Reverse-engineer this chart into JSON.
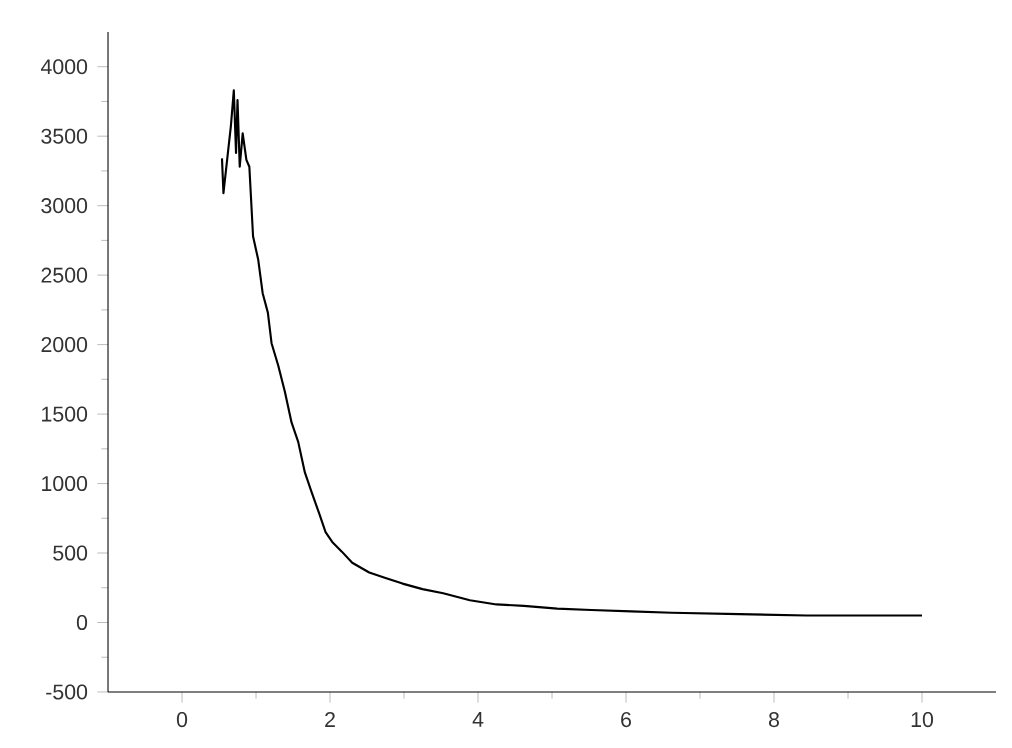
{
  "chart_data": {
    "type": "line",
    "color": "#000000",
    "x": [
      0.54,
      0.56,
      0.62,
      0.66,
      0.7,
      0.73,
      0.75,
      0.78,
      0.82,
      0.87,
      0.91,
      0.96,
      1.03,
      1.09,
      1.16,
      1.21,
      1.3,
      1.39,
      1.48,
      1.57,
      1.66,
      1.75,
      1.85,
      1.94,
      2.03,
      2.16,
      2.3,
      2.53,
      2.75,
      2.98,
      3.25,
      3.53,
      3.89,
      4.25,
      4.62,
      5.07,
      5.53,
      6.07,
      6.62,
      7.53,
      8.44,
      9.35,
      10.0
    ],
    "values": [
      3340,
      3090,
      3380,
      3570,
      3830,
      3380,
      3760,
      3280,
      3520,
      3330,
      3280,
      2780,
      2610,
      2370,
      2230,
      2010,
      1850,
      1660,
      1440,
      1300,
      1080,
      940,
      790,
      650,
      580,
      510,
      430,
      360,
      320,
      280,
      240,
      210,
      160,
      130,
      120,
      100,
      90,
      80,
      70,
      60,
      50,
      50,
      50
    ],
    "xlim": [
      -1,
      11
    ],
    "xticks": [
      0,
      2,
      4,
      6,
      8,
      10
    ],
    "ylim": [
      -500,
      4250
    ],
    "yticks": [
      -500,
      0,
      500,
      1000,
      1500,
      2000,
      2500,
      3000,
      3500,
      4000
    ],
    "marker": "none",
    "line_style": "solid"
  }
}
